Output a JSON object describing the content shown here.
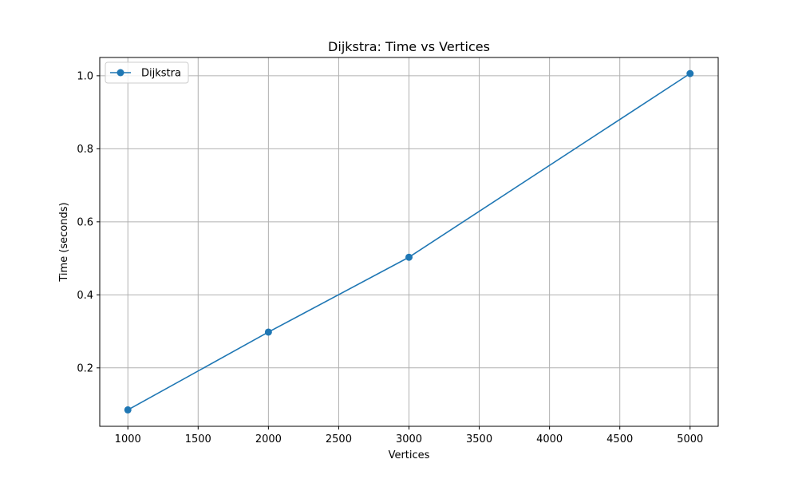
{
  "chart_data": {
    "type": "line",
    "title": "Dijkstra: Time vs Vertices",
    "xlabel": "Vertices",
    "ylabel": "Time (seconds)",
    "x": [
      1000,
      2000,
      3000,
      5000
    ],
    "series": [
      {
        "name": "Dijkstra",
        "values": [
          0.085,
          0.298,
          0.503,
          1.006
        ],
        "color": "#1f77b4",
        "marker": "circle"
      }
    ],
    "xlim": [
      800,
      5200
    ],
    "ylim": [
      0.04,
      1.05
    ],
    "xticks": [
      1000,
      1500,
      2000,
      2500,
      3000,
      3500,
      4000,
      4500,
      5000
    ],
    "yticks": [
      0.2,
      0.4,
      0.6,
      0.8,
      1.0
    ],
    "xtick_labels": [
      "1000",
      "1500",
      "2000",
      "2500",
      "3000",
      "3500",
      "4000",
      "4500",
      "5000"
    ],
    "ytick_labels": [
      "0.2",
      "0.4",
      "0.6",
      "0.8",
      "1.0"
    ],
    "grid": true,
    "grid_color": "#b0b0b0",
    "legend_position": "upper-left"
  }
}
